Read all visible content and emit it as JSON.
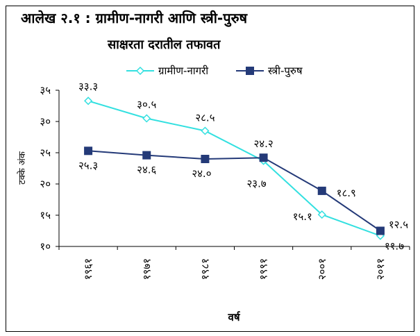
{
  "chart_data": {
    "type": "line",
    "title_line1": "आलेख २.१ : ग्रामीण-नागरी आणि स्त्री-पुरुष",
    "title_line2": "साक्षरता दरातील तफावत",
    "xlabel": "वर्ष",
    "ylabel": "टक्के अंक",
    "categories": [
      "१९६१",
      "१९७१",
      "१९८१",
      "१९९१",
      "२००१",
      "२०११"
    ],
    "ylim": [
      10,
      35
    ],
    "yticks": [
      10,
      15,
      20,
      25,
      30,
      35
    ],
    "ytick_labels": [
      "१०",
      "१५",
      "२०",
      "२५",
      "३०",
      "३५"
    ],
    "legend_position": "top",
    "grid": false,
    "series": [
      {
        "name": "ग्रामीण-नागरी",
        "values": [
          33.3,
          30.5,
          28.5,
          23.7,
          15.1,
          11.7
        ],
        "labels": [
          "३३.३",
          "३०.५",
          "२८.५",
          "२३.७",
          "१५.१",
          "११.७"
        ],
        "color": "#33e0e0",
        "marker": "diamond-open"
      },
      {
        "name": "स्त्री-पुरुष",
        "values": [
          25.3,
          24.6,
          24.0,
          24.2,
          18.9,
          12.5
        ],
        "labels": [
          "२५.३",
          "२४.६",
          "२४.०",
          "२४.२",
          "१८.९",
          "१२.५"
        ],
        "color": "#243a78",
        "marker": "square-filled"
      }
    ]
  }
}
